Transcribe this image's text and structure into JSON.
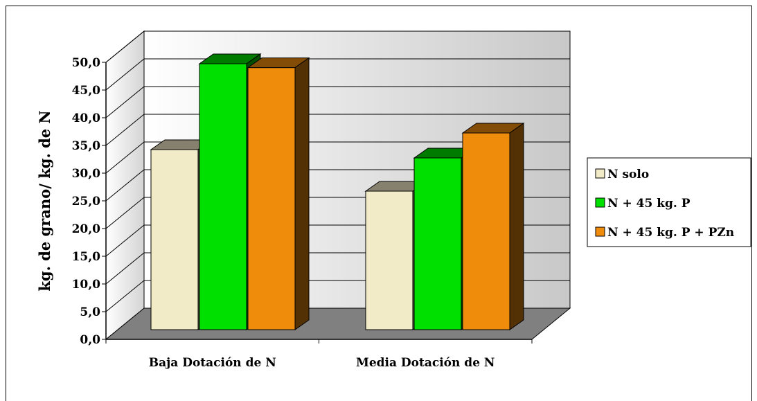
{
  "chart_data": {
    "type": "bar",
    "title": "",
    "xlabel": "",
    "ylabel": "kg. de grano/ kg. de N",
    "categories": [
      "Baja Dotación de N",
      "Media Dotación de N"
    ],
    "series": [
      {
        "name": "N solo",
        "values": [
          32.5,
          25.0
        ],
        "color": "#f2ebc8"
      },
      {
        "name": "N + 45 kg. P",
        "values": [
          48.0,
          31.0
        ],
        "color": "#00e000"
      },
      {
        "name": "N + 45 kg. P + PZn",
        "values": [
          47.3,
          35.5
        ],
        "color": "#f08c0c"
      }
    ],
    "yticks": [
      "0,0",
      "5,0",
      "10,0",
      "15,0",
      "20,0",
      "25,0",
      "30,0",
      "35,0",
      "40,0",
      "45,0",
      "50,0"
    ],
    "ylim": [
      0,
      50
    ],
    "grid": true,
    "legend_position": "right",
    "wall_color": "#c8c8c8",
    "floor_color": "#808080"
  }
}
